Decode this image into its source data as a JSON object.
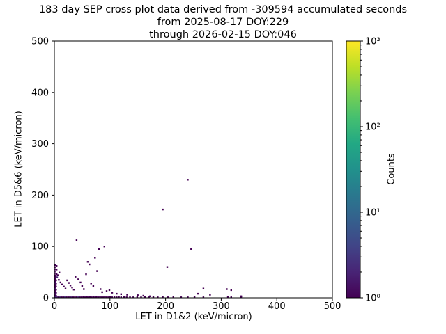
{
  "chart_data": {
    "type": "scatter",
    "title": "183 day SEP cross plot data derived from -309594 accumulated seconds",
    "subtitle_lines": [
      "from 2025-08-17 DOY:229",
      "through 2026-02-15 DOY:046"
    ],
    "xlabel": "LET in D1&2 (keV/micron)",
    "ylabel": "LET in D5&6 (keV/micron)",
    "xlim": [
      0,
      500
    ],
    "ylim": [
      0,
      500
    ],
    "xticks": [
      0,
      100,
      200,
      300,
      400,
      500
    ],
    "yticks": [
      0,
      100,
      200,
      300,
      400,
      500
    ],
    "grid": false,
    "legend": "none",
    "colorbar": {
      "label": "Counts",
      "scale": "log10",
      "range": [
        1,
        1000
      ],
      "tick_values": [
        1,
        10,
        100,
        1000
      ],
      "tick_labels": [
        "10⁰",
        "10¹",
        "10²",
        "10³"
      ],
      "colormap": "viridis"
    },
    "points_format": [
      "let_d12",
      "let_d56",
      "count"
    ],
    "points": [
      [
        1,
        2,
        2
      ],
      [
        1,
        5,
        1
      ],
      [
        1,
        8,
        2
      ],
      [
        1,
        11,
        1
      ],
      [
        1,
        14,
        1
      ],
      [
        1,
        17,
        2
      ],
      [
        1,
        20,
        1
      ],
      [
        1,
        23,
        1
      ],
      [
        1,
        26,
        1
      ],
      [
        1,
        29,
        2
      ],
      [
        1,
        32,
        1
      ],
      [
        1,
        35,
        1
      ],
      [
        1,
        38,
        1
      ],
      [
        1,
        41,
        1
      ],
      [
        1,
        44,
        1
      ],
      [
        1,
        48,
        1
      ],
      [
        1,
        52,
        1
      ],
      [
        1,
        56,
        1
      ],
      [
        1,
        60,
        1
      ],
      [
        1,
        64,
        1
      ],
      [
        3,
        4,
        1
      ],
      [
        3,
        10,
        1
      ],
      [
        3,
        16,
        1
      ],
      [
        3,
        22,
        1
      ],
      [
        3,
        28,
        1
      ],
      [
        3,
        34,
        1
      ],
      [
        3,
        40,
        1
      ],
      [
        4,
        46,
        1
      ],
      [
        4,
        55,
        1
      ],
      [
        4,
        62,
        1
      ],
      [
        4,
        1,
        2
      ],
      [
        7,
        1,
        1
      ],
      [
        10,
        1,
        2
      ],
      [
        13,
        1,
        1
      ],
      [
        16,
        1,
        1
      ],
      [
        19,
        1,
        2
      ],
      [
        22,
        1,
        1
      ],
      [
        25,
        1,
        1
      ],
      [
        28,
        1,
        1
      ],
      [
        31,
        1,
        2
      ],
      [
        34,
        1,
        1
      ],
      [
        37,
        1,
        1
      ],
      [
        40,
        1,
        1
      ],
      [
        43,
        1,
        2
      ],
      [
        46,
        1,
        1
      ],
      [
        49,
        1,
        1
      ],
      [
        52,
        2,
        1
      ],
      [
        55,
        1,
        1
      ],
      [
        58,
        2,
        1
      ],
      [
        61,
        1,
        1
      ],
      [
        64,
        2,
        1
      ],
      [
        67,
        1,
        1
      ],
      [
        70,
        2,
        1
      ],
      [
        73,
        1,
        1
      ],
      [
        76,
        2,
        1
      ],
      [
        79,
        1,
        1
      ],
      [
        82,
        2,
        1
      ],
      [
        85,
        1,
        1
      ],
      [
        88,
        1,
        1
      ],
      [
        91,
        2,
        1
      ],
      [
        94,
        1,
        1
      ],
      [
        97,
        1,
        1
      ],
      [
        100,
        2,
        1
      ],
      [
        104,
        1,
        1
      ],
      [
        108,
        2,
        1
      ],
      [
        112,
        1,
        1
      ],
      [
        116,
        2,
        1
      ],
      [
        120,
        1,
        1
      ],
      [
        125,
        2,
        1
      ],
      [
        130,
        1,
        1
      ],
      [
        136,
        2,
        1
      ],
      [
        142,
        1,
        1
      ],
      [
        149,
        2,
        1
      ],
      [
        156,
        1,
        1
      ],
      [
        163,
        2,
        1
      ],
      [
        170,
        1,
        1
      ],
      [
        178,
        2,
        1
      ],
      [
        186,
        1,
        1
      ],
      [
        195,
        2,
        1
      ],
      [
        204,
        1,
        1
      ],
      [
        214,
        2,
        1
      ],
      [
        228,
        1,
        1
      ],
      [
        240,
        1,
        1
      ],
      [
        252,
        2,
        1
      ],
      [
        268,
        1,
        1
      ],
      [
        312,
        2,
        1
      ],
      [
        318,
        1,
        1
      ],
      [
        336,
        2,
        1
      ],
      [
        5,
        40,
        2
      ],
      [
        6,
        44,
        1
      ],
      [
        9,
        49,
        1
      ],
      [
        8,
        35,
        1
      ],
      [
        11,
        30,
        1
      ],
      [
        14,
        26,
        1
      ],
      [
        17,
        22,
        1
      ],
      [
        20,
        18,
        1
      ],
      [
        23,
        34,
        1
      ],
      [
        26,
        29,
        1
      ],
      [
        29,
        24,
        1
      ],
      [
        32,
        20,
        1
      ],
      [
        35,
        16,
        1
      ],
      [
        38,
        41,
        1
      ],
      [
        40,
        112,
        1
      ],
      [
        43,
        36,
        1
      ],
      [
        47,
        30,
        1
      ],
      [
        50,
        23,
        1
      ],
      [
        53,
        17,
        1
      ],
      [
        57,
        46,
        1
      ],
      [
        60,
        70,
        1
      ],
      [
        63,
        65,
        1
      ],
      [
        66,
        28,
        1
      ],
      [
        70,
        23,
        1
      ],
      [
        73,
        78,
        1
      ],
      [
        77,
        52,
        1
      ],
      [
        80,
        95,
        1
      ],
      [
        83,
        17,
        1
      ],
      [
        86,
        11,
        1
      ],
      [
        90,
        100,
        1
      ],
      [
        94,
        13,
        1
      ],
      [
        99,
        15,
        1
      ],
      [
        104,
        10,
        1
      ],
      [
        112,
        8,
        1
      ],
      [
        120,
        7,
        1
      ],
      [
        131,
        6,
        1
      ],
      [
        150,
        5,
        1
      ],
      [
        160,
        4,
        1
      ],
      [
        172,
        3,
        1
      ],
      [
        195,
        172,
        1
      ],
      [
        203,
        60,
        1
      ],
      [
        240,
        230,
        1
      ],
      [
        246,
        95,
        1
      ],
      [
        258,
        8,
        1
      ],
      [
        268,
        18,
        1
      ],
      [
        280,
        6,
        1
      ],
      [
        310,
        17,
        1
      ],
      [
        318,
        15,
        1
      ],
      [
        336,
        3,
        1
      ]
    ]
  },
  "colors": {
    "background": "#ffffff",
    "axes": "#000000",
    "text": "#000000",
    "marker_base": "#440154",
    "viridis_stops": [
      "#440154",
      "#482475",
      "#414487",
      "#355f8d",
      "#2a788e",
      "#21918c",
      "#22a884",
      "#44bf70",
      "#7ad151",
      "#bddf26",
      "#fde725"
    ]
  }
}
